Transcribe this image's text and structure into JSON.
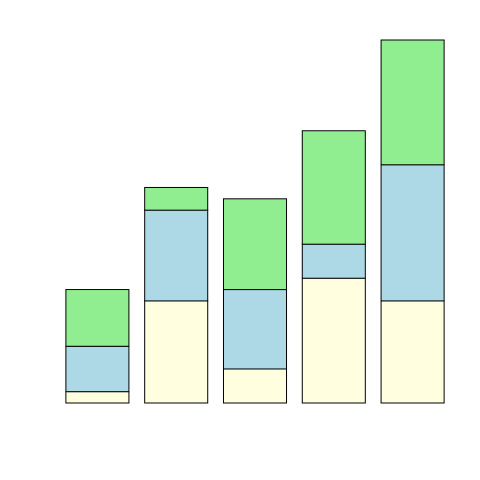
{
  "chart_data": {
    "type": "bar",
    "stacked": true,
    "categories": [
      "",
      "",
      "",
      "",
      ""
    ],
    "series": [
      {
        "values": [
          1,
          9,
          3,
          11,
          9
        ],
        "color": "#FFFFE0"
      },
      {
        "values": [
          4,
          8,
          7,
          3,
          12
        ],
        "color": "#ADD8E6"
      },
      {
        "values": [
          5,
          2,
          8,
          10,
          11
        ],
        "color": "#90EE90"
      }
    ],
    "ylim": [
      0,
      32
    ],
    "axes_visible": false,
    "grid": false,
    "legend": false,
    "bar_outline_color": "#000000"
  }
}
